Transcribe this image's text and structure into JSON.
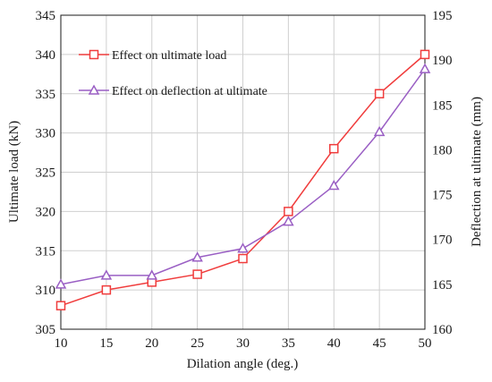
{
  "chart_data": {
    "type": "line",
    "x": [
      10,
      15,
      20,
      25,
      30,
      35,
      40,
      45,
      50
    ],
    "xlabel": "Dilation angle (deg.)",
    "xlim": [
      10,
      50
    ],
    "xticks": [
      10,
      15,
      20,
      25,
      30,
      35,
      40,
      45,
      50
    ],
    "ylabel_left": "Ultimate load (kN)",
    "ylim_left": [
      305,
      345
    ],
    "yticks_left": [
      305,
      310,
      315,
      320,
      325,
      330,
      335,
      340,
      345
    ],
    "ylabel_right": "Deflection at ultimate (mm)",
    "ylim_right": [
      160,
      195
    ],
    "yticks_right": [
      160,
      165,
      170,
      175,
      180,
      185,
      190,
      195
    ],
    "grid": true,
    "legend_position": "top-left",
    "series": [
      {
        "name": "Effect on ultimate load",
        "axis": "left",
        "marker": "square",
        "color": "#f03c3c",
        "values": [
          308,
          310,
          311,
          312,
          314,
          320,
          328,
          335,
          340
        ]
      },
      {
        "name": "Effect on deflection at ultimate",
        "axis": "right",
        "marker": "triangle",
        "color": "#9a5fc4",
        "values": [
          165,
          166,
          166,
          168,
          169,
          172,
          176,
          182,
          189
        ]
      }
    ]
  }
}
